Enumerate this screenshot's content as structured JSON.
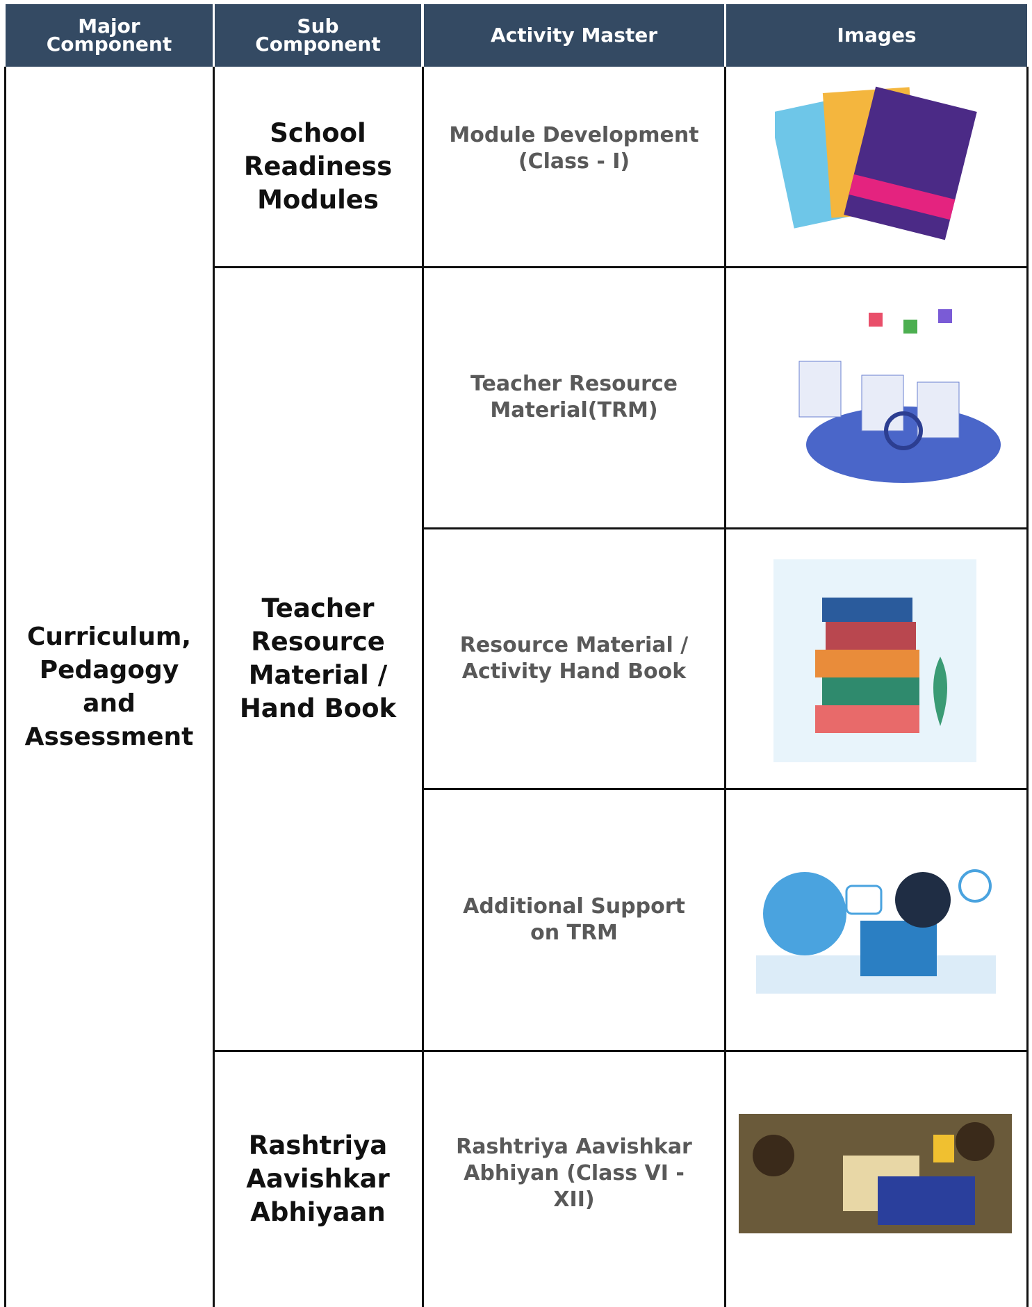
{
  "header": {
    "columns": [
      "Major Component",
      "Sub Component",
      "Activity Master",
      "Images"
    ]
  },
  "table": {
    "major_component": "Curriculum, Pedagogy and Assessment",
    "sub_components": [
      {
        "name": "School Readiness Modules",
        "activities": [
          "Module Development (Class - I)"
        ]
      },
      {
        "name": "Teacher Resource Material / Hand Book",
        "activities": [
          "Teacher Resource Material(TRM)",
          "Resource Material / Activity Hand Book",
          "Additional Support on TRM"
        ]
      },
      {
        "name": "Rashtriya Aavishkar Abhiyaan",
        "activities": [
          "Rashtriya Aavishkar Abhiyan (Class VI - XII)"
        ]
      }
    ]
  }
}
